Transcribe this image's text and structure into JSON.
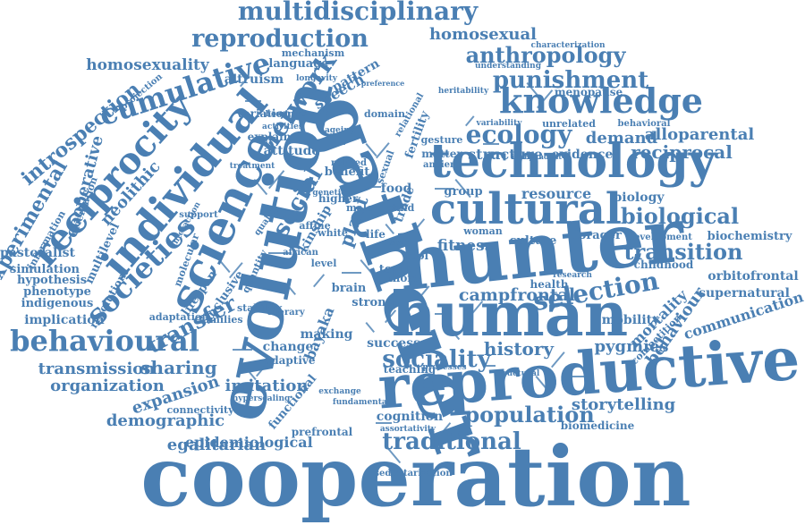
{
  "color": "#4a7fb3",
  "words": [
    {
      "text": "cooperation",
      "weight": 1.0
    },
    {
      "text": "gatherer",
      "weight": 0.97
    },
    {
      "text": "evolution",
      "weight": 0.92
    },
    {
      "text": "hunter",
      "weight": 0.85
    },
    {
      "text": "reproductive",
      "weight": 0.78
    },
    {
      "text": "human",
      "weight": 0.76
    },
    {
      "text": "technology",
      "weight": 0.62
    },
    {
      "text": "cultural",
      "weight": 0.6
    },
    {
      "text": "science",
      "weight": 0.58
    },
    {
      "text": "individual",
      "weight": 0.55
    },
    {
      "text": "behavioural",
      "weight": 0.5
    },
    {
      "text": "reciprocity",
      "weight": 0.5
    },
    {
      "text": "knowledge",
      "weight": 0.48
    },
    {
      "text": "societies",
      "weight": 0.45
    },
    {
      "text": "cumulative",
      "weight": 0.45
    },
    {
      "text": "multidisciplinary",
      "weight": 0.42
    },
    {
      "text": "reproduction",
      "weight": 0.42
    },
    {
      "text": "anthropology",
      "weight": 0.4
    },
    {
      "text": "punishment",
      "weight": 0.4
    },
    {
      "text": "ecology",
      "weight": 0.4
    },
    {
      "text": "selection",
      "weight": 0.38
    },
    {
      "text": "biological",
      "weight": 0.38
    },
    {
      "text": "transition",
      "weight": 0.37
    },
    {
      "text": "population",
      "weight": 0.36
    },
    {
      "text": "traditional",
      "weight": 0.35
    },
    {
      "text": "sociality",
      "weight": 0.34
    },
    {
      "text": "network",
      "weight": 0.34
    },
    {
      "text": "social",
      "weight": 0.34
    },
    {
      "text": "introspection",
      "weight": 0.32
    },
    {
      "text": "experimental",
      "weight": 0.32
    },
    {
      "text": "homosexuality",
      "weight": 0.3
    },
    {
      "text": "homosexual",
      "weight": 0.3
    },
    {
      "text": "cooperative",
      "weight": 0.3
    },
    {
      "text": "neolithic",
      "weight": 0.3
    },
    {
      "text": "transfer",
      "weight": 0.3
    },
    {
      "text": "sharing",
      "weight": 0.3
    },
    {
      "text": "history",
      "weight": 0.3
    },
    {
      "text": "storytelling",
      "weight": 0.28
    },
    {
      "text": "fitness",
      "weight": 0.28
    },
    {
      "text": "bayaka",
      "weight": 0.28
    },
    {
      "text": "pygmies",
      "weight": 0.28
    },
    {
      "text": "demand",
      "weight": 0.27
    },
    {
      "text": "reciprocal",
      "weight": 0.27
    },
    {
      "text": "alloparental",
      "weight": 0.26
    },
    {
      "text": "campfrontal",
      "weight": 0.27
    },
    {
      "text": "transmission",
      "weight": 0.27
    },
    {
      "text": "organization",
      "weight": 0.27
    },
    {
      "text": "demographic",
      "weight": 0.27
    },
    {
      "text": "egalitarian",
      "weight": 0.27
    },
    {
      "text": "epidemiological",
      "weight": 0.26
    },
    {
      "text": "expansion",
      "weight": 0.26
    },
    {
      "text": "imitation",
      "weight": 0.26
    },
    {
      "text": "communication",
      "weight": 0.25
    },
    {
      "text": "behaviour",
      "weight": 0.25
    },
    {
      "text": "mortality",
      "weight": 0.24
    },
    {
      "text": "supernatural",
      "weight": 0.24
    },
    {
      "text": "orbitofrontal",
      "weight": 0.23
    },
    {
      "text": "biochemistry",
      "weight": 0.22
    },
    {
      "text": "childhood",
      "weight": 0.2
    },
    {
      "text": "resource",
      "weight": 0.25
    },
    {
      "text": "biology",
      "weight": 0.23
    },
    {
      "text": "evidence",
      "weight": 0.22
    },
    {
      "text": "structure",
      "weight": 0.24
    },
    {
      "text": "culture",
      "weight": 0.23
    },
    {
      "text": "forager",
      "weight": 0.22
    },
    {
      "text": "mobility",
      "weight": 0.23
    },
    {
      "text": "menopause",
      "weight": 0.2
    },
    {
      "text": "language",
      "weight": 0.22
    },
    {
      "text": "mechanism",
      "weight": 0.2
    },
    {
      "text": "altruism",
      "weight": 0.22
    },
    {
      "text": "variation",
      "weight": 0.2
    },
    {
      "text": "speech",
      "weight": 0.24
    },
    {
      "text": "pattern",
      "weight": 0.23
    },
    {
      "text": "attitude",
      "weight": 0.23
    },
    {
      "text": "explain",
      "weight": 0.2
    },
    {
      "text": "kinship",
      "weight": 0.2
    },
    {
      "text": "inclusive",
      "weight": 0.22
    },
    {
      "text": "lifespan",
      "weight": 0.22
    },
    {
      "text": "plant",
      "weight": 0.25
    },
    {
      "text": "food",
      "weight": 0.25
    },
    {
      "text": "trade",
      "weight": 0.23
    },
    {
      "text": "brain",
      "weight": 0.22
    },
    {
      "text": "strong",
      "weight": 0.2
    },
    {
      "text": "topic",
      "weight": 0.2
    },
    {
      "text": "more",
      "weight": 0.2
    },
    {
      "text": "tool",
      "weight": 0.2
    },
    {
      "text": "success",
      "weight": 0.22
    },
    {
      "text": "making",
      "weight": 0.22
    },
    {
      "text": "change",
      "weight": 0.2
    },
    {
      "text": "adaptive",
      "weight": 0.2
    },
    {
      "text": "cognition",
      "weight": 0.21
    },
    {
      "text": "teaching",
      "weight": 0.18
    },
    {
      "text": "pastoralist",
      "weight": 0.22
    },
    {
      "text": "simulation",
      "weight": 0.2
    },
    {
      "text": "hypothesis",
      "weight": 0.2
    },
    {
      "text": "phenotype",
      "weight": 0.2
    },
    {
      "text": "indigenous",
      "weight": 0.2
    },
    {
      "text": "implication",
      "weight": 0.21
    },
    {
      "text": "multilevel",
      "weight": 0.2
    },
    {
      "text": "revolution",
      "weight": 0.18
    },
    {
      "text": "adaptation",
      "weight": 0.18
    },
    {
      "text": "families",
      "weight": 0.18
    },
    {
      "text": "stability",
      "weight": 0.17
    },
    {
      "text": "literary",
      "weight": 0.17
    },
    {
      "text": "level",
      "weight": 0.18
    },
    {
      "text": "african",
      "weight": 0.16
    },
    {
      "text": "white",
      "weight": 0.16
    },
    {
      "text": "life",
      "weight": 0.2
    },
    {
      "text": "size",
      "weight": 0.16
    },
    {
      "text": "woman",
      "weight": 0.17
    },
    {
      "text": "male",
      "weight": 0.17
    },
    {
      "text": "fertility",
      "weight": 0.2
    },
    {
      "text": "matter",
      "weight": 0.18
    },
    {
      "text": "ancient",
      "weight": 0.16
    },
    {
      "text": "group",
      "weight": 0.2
    },
    {
      "text": "domain",
      "weight": 0.16
    },
    {
      "text": "unrelated",
      "weight": 0.18
    },
    {
      "text": "behavioral",
      "weight": 0.16
    },
    {
      "text": "understanding",
      "weight": 0.14
    },
    {
      "text": "characterization",
      "weight": 0.14
    },
    {
      "text": "development",
      "weight": 0.16
    },
    {
      "text": "research",
      "weight": 0.14
    },
    {
      "text": "health",
      "weight": 0.17
    },
    {
      "text": "competition",
      "weight": 0.16
    },
    {
      "text": "processes",
      "weight": 0.15
    },
    {
      "text": "structural",
      "weight": 0.14
    },
    {
      "text": "connectivity",
      "weight": 0.15
    },
    {
      "text": "functional",
      "weight": 0.17
    },
    {
      "text": "prefrontal",
      "weight": 0.17
    },
    {
      "text": "hyperscaling",
      "weight": 0.14
    },
    {
      "text": "fundamental",
      "weight": 0.14
    },
    {
      "text": "exchange",
      "weight": 0.14
    },
    {
      "text": "sedentarization",
      "weight": 0.14
    },
    {
      "text": "biomedicine",
      "weight": 0.17
    },
    {
      "text": "assortativity",
      "weight": 0.13
    },
    {
      "text": "information",
      "weight": 0.15
    },
    {
      "text": "orientation",
      "weight": 0.15
    },
    {
      "text": "projection",
      "weight": 0.14
    },
    {
      "text": "quantity",
      "weight": 0.15
    },
    {
      "text": "molecular",
      "weight": 0.15
    },
    {
      "text": "support",
      "weight": 0.14
    },
    {
      "text": "quality",
      "weight": 0.13
    },
    {
      "text": "activities",
      "weight": 0.13
    },
    {
      "text": "hominins",
      "weight": 0.13
    },
    {
      "text": "longevity",
      "weight": 0.13
    },
    {
      "text": "heritability",
      "weight": 0.12
    },
    {
      "text": "variability",
      "weight": 0.13
    },
    {
      "text": "preference",
      "weight": 0.12
    },
    {
      "text": "gesture",
      "weight": 0.15
    },
    {
      "text": "related",
      "weight": 0.13
    },
    {
      "text": "benefit",
      "weight": 0.16
    },
    {
      "text": "higher",
      "weight": 0.14
    },
    {
      "text": "affine",
      "weight": 0.15
    },
    {
      "text": "child",
      "weight": 0.14
    },
    {
      "text": "ageing",
      "weight": 0.12
    },
    {
      "text": "relational",
      "weight": 0.12
    },
    {
      "text": "genetic",
      "weight": 0.12
    },
    {
      "text": "treatment",
      "weight": 0.12
    },
    {
      "text": "interaction",
      "weight": 0.12
    },
    {
      "text": "independent",
      "weight": 0.11
    },
    {
      "text": "sexual",
      "weight": 0.15
    }
  ]
}
